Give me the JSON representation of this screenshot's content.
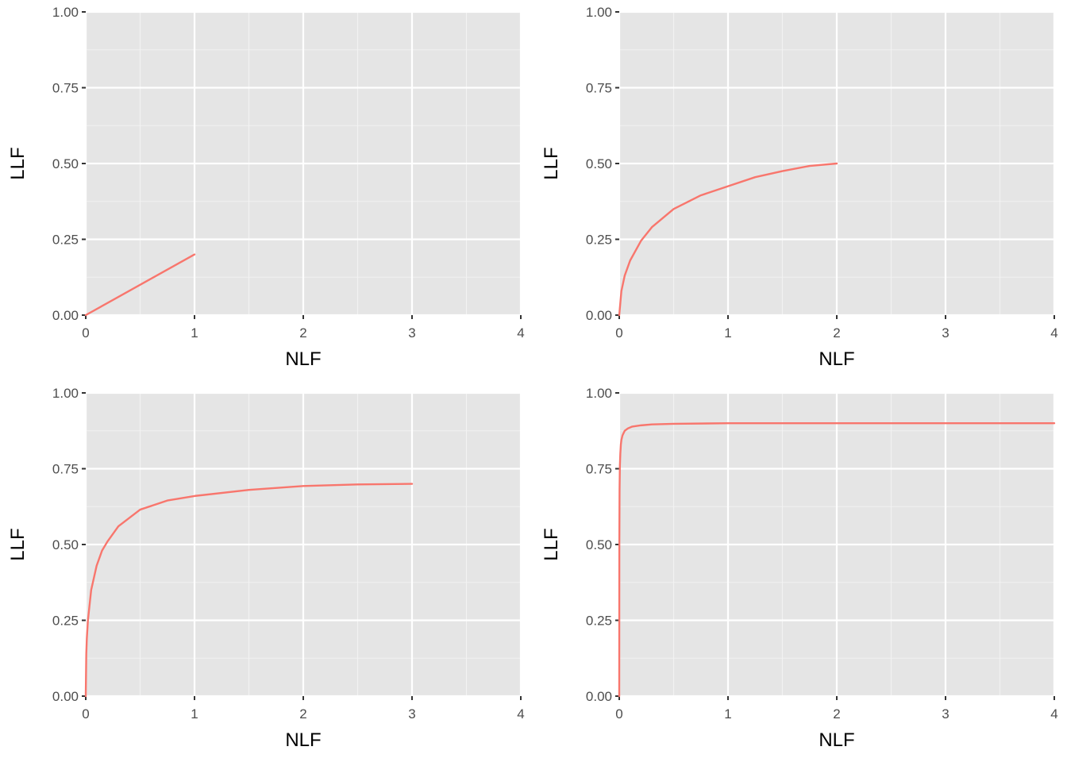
{
  "figure": {
    "panel_background": "#e5e5e5",
    "grid_major": "#ffffff",
    "grid_minor": "#f2f2f2",
    "axis_tick_color": "#333333",
    "line_color": "#f8766d"
  },
  "chart_data": [
    {
      "type": "line",
      "xlabel": "NLF",
      "ylabel": "LLF",
      "xlim": [
        0,
        4
      ],
      "ylim": [
        0,
        1
      ],
      "x_ticks": [
        "0",
        "1",
        "2",
        "3",
        "4"
      ],
      "y_ticks": [
        "0.00",
        "0.25",
        "0.50",
        "0.75",
        "1.00"
      ],
      "grid": true,
      "series": [
        {
          "x": [
            0,
            1
          ],
          "y": [
            0,
            0.2
          ]
        }
      ]
    },
    {
      "type": "line",
      "xlabel": "NLF",
      "ylabel": "LLF",
      "xlim": [
        0,
        4
      ],
      "ylim": [
        0,
        1
      ],
      "x_ticks": [
        "0",
        "1",
        "2",
        "3",
        "4"
      ],
      "y_ticks": [
        "0.00",
        "0.25",
        "0.50",
        "0.75",
        "1.00"
      ],
      "grid": true,
      "series": [
        {
          "x": [
            0,
            0.02,
            0.05,
            0.1,
            0.2,
            0.3,
            0.5,
            0.75,
            1,
            1.25,
            1.5,
            1.75,
            2
          ],
          "y": [
            0,
            0.08,
            0.13,
            0.18,
            0.245,
            0.29,
            0.35,
            0.395,
            0.425,
            0.455,
            0.475,
            0.492,
            0.5
          ]
        }
      ]
    },
    {
      "type": "line",
      "xlabel": "NLF",
      "ylabel": "LLF",
      "xlim": [
        0,
        4
      ],
      "ylim": [
        0,
        1
      ],
      "x_ticks": [
        "0",
        "1",
        "2",
        "3",
        "4"
      ],
      "y_ticks": [
        "0.00",
        "0.25",
        "0.50",
        "0.75",
        "1.00"
      ],
      "grid": true,
      "series": [
        {
          "x": [
            0,
            0.005,
            0.01,
            0.02,
            0.05,
            0.1,
            0.15,
            0.2,
            0.3,
            0.5,
            0.75,
            1,
            1.5,
            2,
            2.5,
            3
          ],
          "y": [
            0,
            0.14,
            0.19,
            0.25,
            0.35,
            0.43,
            0.48,
            0.51,
            0.56,
            0.615,
            0.645,
            0.66,
            0.68,
            0.693,
            0.698,
            0.7
          ]
        }
      ]
    },
    {
      "type": "line",
      "xlabel": "NLF",
      "ylabel": "LLF",
      "xlim": [
        0,
        4
      ],
      "ylim": [
        0,
        1
      ],
      "x_ticks": [
        "0",
        "1",
        "2",
        "3",
        "4"
      ],
      "y_ticks": [
        "0.00",
        "0.25",
        "0.50",
        "0.75",
        "1.00"
      ],
      "grid": true,
      "series": [
        {
          "x": [
            0,
            0.001,
            0.003,
            0.006,
            0.01,
            0.015,
            0.02,
            0.03,
            0.05,
            0.08,
            0.12,
            0.2,
            0.3,
            0.5,
            1,
            2,
            3,
            4
          ],
          "y": [
            0,
            0.5,
            0.68,
            0.76,
            0.8,
            0.83,
            0.845,
            0.86,
            0.875,
            0.883,
            0.889,
            0.893,
            0.896,
            0.898,
            0.9,
            0.9,
            0.9,
            0.9
          ]
        }
      ]
    }
  ]
}
